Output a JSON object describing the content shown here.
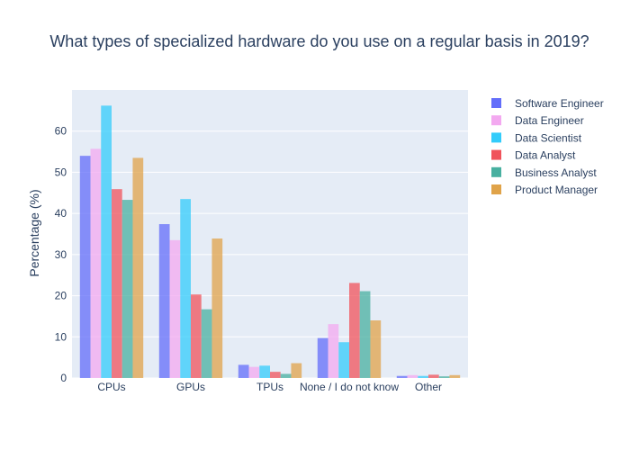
{
  "chart_data": {
    "type": "bar",
    "title": "What types of specialized hardware do you use on a regular basis in 2019?",
    "xlabel": "",
    "ylabel": "Percentage (%)",
    "ylim": [
      0,
      70
    ],
    "yticks": [
      0,
      10,
      20,
      30,
      40,
      50,
      60
    ],
    "grid": true,
    "legend_position": "right",
    "categories": [
      "CPUs",
      "GPUs",
      "TPUs",
      "None / I do not know",
      "Other"
    ],
    "series": [
      {
        "name": "Software Engineer",
        "color": "#636efa",
        "values": [
          54.0,
          37.4,
          3.2,
          9.7,
          0.5
        ]
      },
      {
        "name": "Data Engineer",
        "color": "#f3a9f0",
        "values": [
          55.7,
          33.5,
          2.7,
          13.1,
          0.7
        ]
      },
      {
        "name": "Data Scientist",
        "color": "#33ccfb",
        "values": [
          66.2,
          43.5,
          3.0,
          8.7,
          0.5
        ]
      },
      {
        "name": "Data Analyst",
        "color": "#f0535b",
        "values": [
          45.9,
          20.3,
          1.5,
          23.1,
          0.8
        ]
      },
      {
        "name": "Business Analyst",
        "color": "#48b0a0",
        "values": [
          43.3,
          16.7,
          1.0,
          21.1,
          0.4
        ]
      },
      {
        "name": "Product Manager",
        "color": "#e0a349",
        "values": [
          53.5,
          33.9,
          3.6,
          14.0,
          0.7
        ]
      }
    ]
  }
}
